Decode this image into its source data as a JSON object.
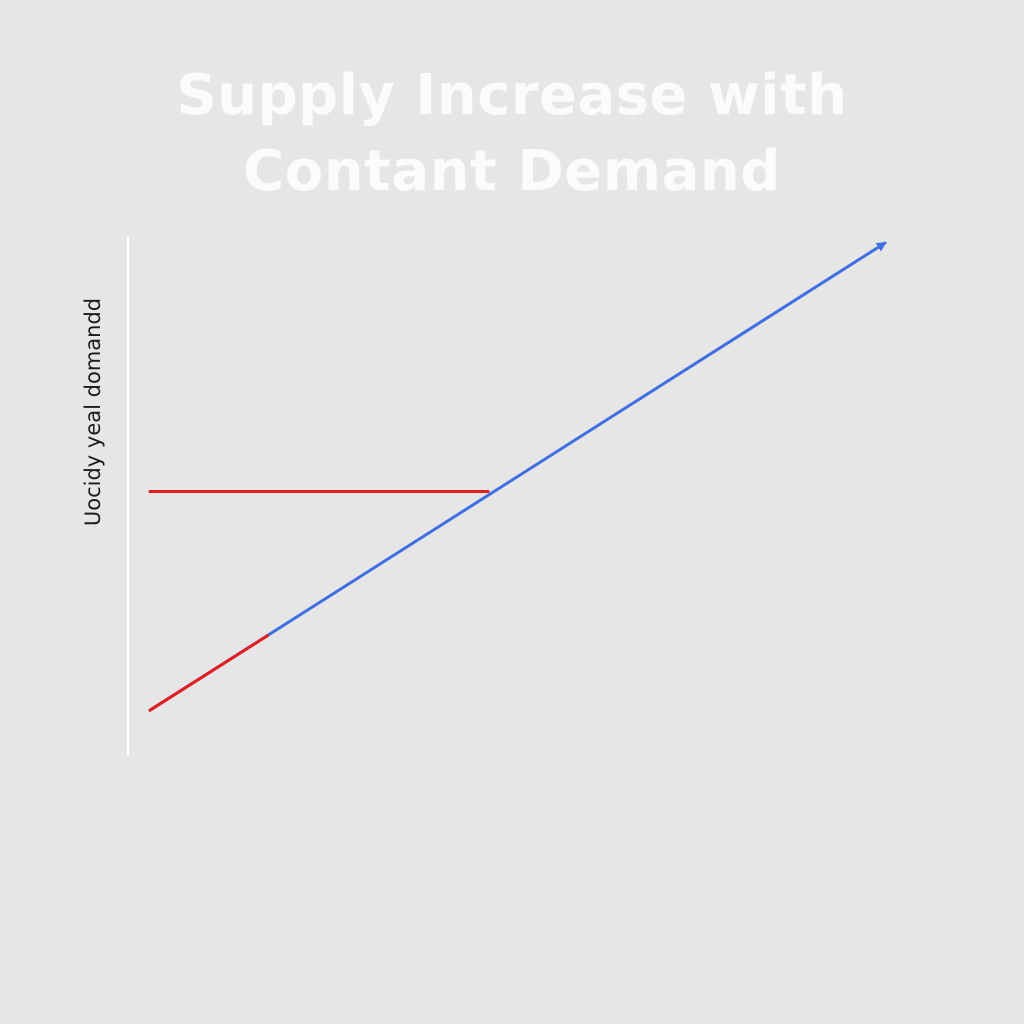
{
  "chart_data": {
    "type": "line",
    "title_lines": [
      "Supply Increase with",
      "Contant Demand"
    ],
    "xlabel": "",
    "ylabel": "Uocidy yeal domandd",
    "xlim": [
      0,
      10
    ],
    "ylim": [
      0,
      10
    ],
    "grid": false,
    "legend": "none",
    "series": [
      {
        "color": "#3f6fe0",
        "arrow_end": true,
        "x": [
          0.0,
          10.0
        ],
        "y": [
          0.6,
          10.0
        ]
      },
      {
        "color": "#e41e1e",
        "x": [
          0.0,
          4.6
        ],
        "y": [
          5.0,
          5.0
        ]
      },
      {
        "color": "#e41e1e",
        "x": [
          0.0,
          1.6
        ],
        "y": [
          0.6,
          2.1
        ]
      }
    ]
  },
  "colors": {
    "background": "#e6e6e6",
    "axis": "#ffffff",
    "title": "#fbfbfb",
    "ylabel": "#1c1c1c"
  }
}
